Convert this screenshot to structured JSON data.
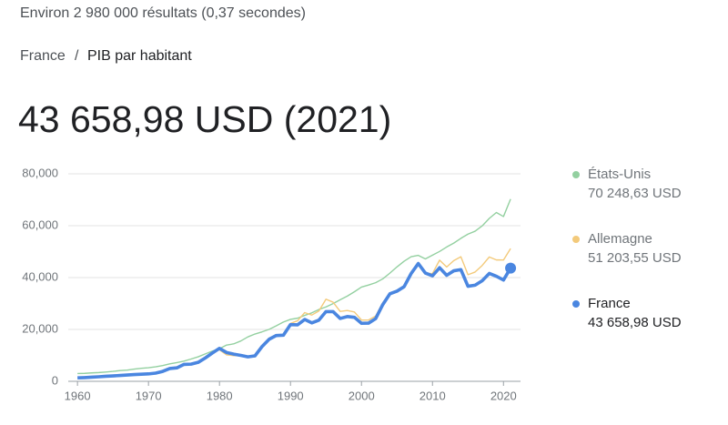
{
  "results": "Environ 2 980 000 résultats (0,37 secondes)",
  "breadcrumb": {
    "country": "France",
    "separator": "/",
    "topic": "PIB par habitant"
  },
  "headline": "43 658,98 USD (2021)",
  "chart_data": {
    "type": "line",
    "x": [
      1960,
      1961,
      1962,
      1963,
      1964,
      1965,
      1966,
      1967,
      1968,
      1969,
      1970,
      1971,
      1972,
      1973,
      1974,
      1975,
      1976,
      1977,
      1978,
      1979,
      1980,
      1981,
      1982,
      1983,
      1984,
      1985,
      1986,
      1987,
      1988,
      1989,
      1990,
      1991,
      1992,
      1993,
      1994,
      1995,
      1996,
      1997,
      1998,
      1999,
      2000,
      2001,
      2002,
      2003,
      2004,
      2005,
      2006,
      2007,
      2008,
      2009,
      2010,
      2011,
      2012,
      2013,
      2014,
      2015,
      2016,
      2017,
      2018,
      2019,
      2020,
      2021
    ],
    "series": [
      {
        "name": "États-Unis",
        "legend_label": "70 248,63 USD",
        "color": "#93d0a0",
        "width": 1.4,
        "values": [
          3007,
          3067,
          3244,
          3375,
          3574,
          3828,
          4146,
          4336,
          4696,
          5032,
          5234,
          5609,
          6094,
          6726,
          7226,
          7801,
          8592,
          9453,
          10565,
          11674,
          12575,
          13976,
          14434,
          15544,
          17121,
          18237,
          19071,
          20039,
          21417,
          22857,
          23889,
          24342,
          25419,
          26387,
          27695,
          28691,
          29968,
          31459,
          32854,
          34515,
          36330,
          37134,
          38023,
          39496,
          41713,
          44115,
          46299,
          48050,
          48570,
          47195,
          48651,
          50066,
          51784,
          53291,
          55124,
          56763,
          57867,
          59915,
          62805,
          65095,
          63528,
          70248.63
        ]
      },
      {
        "name": "Allemagne",
        "legend_label": "51 203,55 USD",
        "color": "#f3ca7b",
        "width": 1.4,
        "values": [
          null,
          null,
          null,
          null,
          null,
          null,
          null,
          null,
          null,
          null,
          2761,
          3193,
          3811,
          5047,
          5639,
          6149,
          6600,
          7594,
          9406,
          11185,
          12138,
          10209,
          9914,
          9865,
          9314,
          9429,
          13462,
          16678,
          18001,
          17764,
          22304,
          23357,
          26492,
          25543,
          27090,
          31659,
          30503,
          26964,
          27289,
          26735,
          23636,
          23628,
          25197,
          30310,
          34107,
          34520,
          36354,
          41640,
          45612,
          41650,
          41572,
          46705,
          44065,
          46531,
          48024,
          41103,
          42136,
          44653,
          47939,
          46794,
          46773,
          51203.55
        ]
      },
      {
        "name": "France",
        "legend_label": "43 658,98 USD",
        "color": "#4a86e0",
        "width": 3.6,
        "values": [
          1338,
          1441,
          1588,
          1752,
          1949,
          2085,
          2253,
          2418,
          2599,
          2737,
          2858,
          3154,
          3834,
          4944,
          5194,
          6518,
          6627,
          7307,
          8998,
          10924,
          12713,
          11106,
          10496,
          10000,
          9437,
          9818,
          13414,
          16237,
          17664,
          17771,
          21866,
          21787,
          23838,
          22535,
          23593,
          26890,
          26872,
          24228,
          24974,
          24673,
          22364,
          22433,
          24177,
          29568,
          33741,
          34760,
          36470,
          41575,
          45413,
          41738,
          40676,
          43791,
          40875,
          42602,
          43068,
          36653,
          37062,
          38781,
          41593,
          40494,
          39055,
          43658.98
        ]
      }
    ],
    "xlim": [
      1958.7,
      2022.4
    ],
    "xticks": [
      1960,
      1970,
      1980,
      1990,
      2000,
      2010,
      2020
    ],
    "ylim": [
      0,
      80000
    ],
    "yticks": [
      0,
      {
        "value": 20000,
        "label": "20,000"
      },
      {
        "value": 40000,
        "label": "40,000"
      },
      {
        "value": 60000,
        "label": "60,000"
      },
      {
        "value": 80000,
        "label": "80,000"
      }
    ],
    "grid": true
  }
}
